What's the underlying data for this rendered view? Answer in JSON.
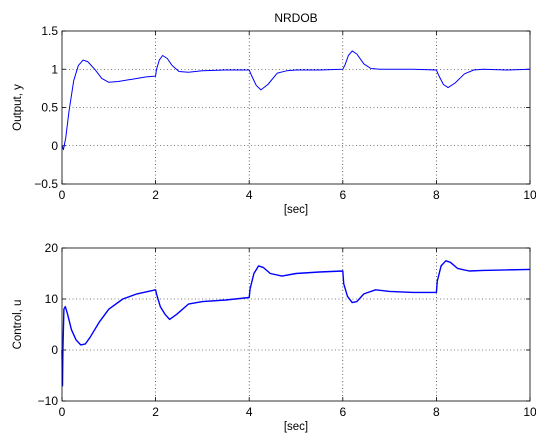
{
  "chart_data": [
    {
      "type": "line",
      "title": "NRDOB",
      "xlabel": "[sec]",
      "ylabel": "Output, y",
      "xlim": [
        0,
        10
      ],
      "ylim": [
        -0.5,
        1.5
      ],
      "xticks": [
        0,
        2,
        4,
        6,
        8,
        10
      ],
      "yticks": [
        -0.5,
        0,
        0.5,
        1,
        1.5
      ],
      "xtick_labels": [
        "0",
        "2",
        "4",
        "6",
        "8",
        "10"
      ],
      "ytick_labels": [
        "−0.5",
        "0",
        "0.5",
        "1",
        "1.5"
      ],
      "grid": true,
      "line_color": "#0000ff",
      "series": [
        {
          "x": [
            0,
            0.03,
            0.08,
            0.15,
            0.25,
            0.35,
            0.45,
            0.55,
            0.7,
            0.85,
            1.0,
            1.2,
            1.5,
            1.8,
            2.0,
            2.02,
            2.08,
            2.15,
            2.25,
            2.35,
            2.5,
            2.7,
            3.0,
            3.5,
            4.0,
            4.05,
            4.15,
            4.25,
            4.4,
            4.6,
            4.8,
            5.0,
            5.5,
            6.0,
            6.05,
            6.12,
            6.2,
            6.3,
            6.45,
            6.6,
            6.8,
            7.0,
            7.5,
            8.0,
            8.05,
            8.15,
            8.25,
            8.4,
            8.6,
            8.8,
            9.0,
            9.5,
            10.0
          ],
          "y": [
            0.0,
            -0.05,
            0.1,
            0.45,
            0.85,
            1.05,
            1.12,
            1.1,
            1.0,
            0.88,
            0.83,
            0.84,
            0.87,
            0.9,
            0.91,
            1.0,
            1.12,
            1.18,
            1.14,
            1.05,
            0.97,
            0.96,
            0.98,
            0.99,
            0.99,
            0.92,
            0.79,
            0.73,
            0.8,
            0.95,
            0.98,
            0.99,
            0.99,
            1.0,
            1.06,
            1.18,
            1.24,
            1.2,
            1.07,
            1.01,
            1.0,
            1.0,
            1.0,
            0.99,
            0.92,
            0.8,
            0.76,
            0.82,
            0.94,
            0.99,
            1.0,
            0.99,
            1.0
          ]
        }
      ]
    },
    {
      "type": "line",
      "title": "",
      "xlabel": "[sec]",
      "ylabel": "Control, u",
      "xlim": [
        0,
        10
      ],
      "ylim": [
        -10,
        20
      ],
      "xticks": [
        0,
        2,
        4,
        6,
        8,
        10
      ],
      "yticks": [
        -10,
        0,
        10,
        20
      ],
      "xtick_labels": [
        "0",
        "2",
        "4",
        "6",
        "8",
        "10"
      ],
      "ytick_labels": [
        "−10",
        "0",
        "10",
        "20"
      ],
      "grid": true,
      "line_color": "#0000ff",
      "series": [
        {
          "x": [
            0,
            0.01,
            0.02,
            0.04,
            0.07,
            0.12,
            0.2,
            0.3,
            0.4,
            0.5,
            0.6,
            0.8,
            1.0,
            1.3,
            1.6,
            2.0,
            2.02,
            2.1,
            2.2,
            2.3,
            2.45,
            2.7,
            3.0,
            3.5,
            4.0,
            4.02,
            4.1,
            4.2,
            4.3,
            4.45,
            4.7,
            5.0,
            5.5,
            6.0,
            6.02,
            6.1,
            6.2,
            6.3,
            6.45,
            6.7,
            7.0,
            7.5,
            8.0,
            8.02,
            8.1,
            8.2,
            8.3,
            8.45,
            8.7,
            9.0,
            9.5,
            10.0
          ],
          "y": [
            0,
            -7,
            0,
            8,
            8.5,
            7,
            4,
            2,
            1,
            1.2,
            2.5,
            5.5,
            8,
            10,
            11,
            11.8,
            11,
            8.5,
            7,
            6,
            7,
            9,
            9.5,
            9.8,
            10.3,
            12,
            15,
            16.5,
            16.2,
            15,
            14.5,
            15,
            15.3,
            15.5,
            13,
            10.5,
            9.3,
            9.5,
            11,
            11.8,
            11.5,
            11.3,
            11.3,
            13.5,
            16.5,
            17.5,
            17.2,
            16,
            15.5,
            15.6,
            15.7,
            15.8
          ]
        }
      ]
    }
  ]
}
